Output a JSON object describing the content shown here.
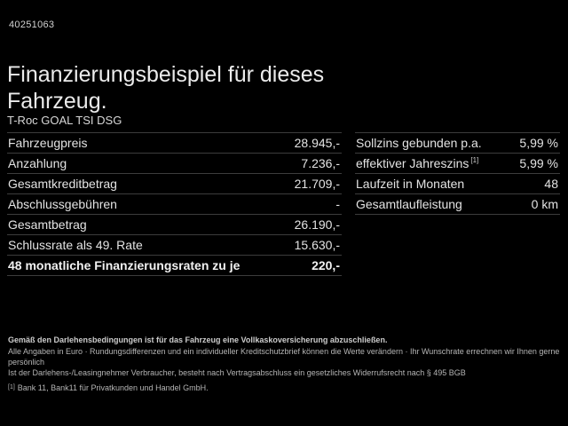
{
  "meta": {
    "vehicle_id": "40251063"
  },
  "header": {
    "title": "Finanzierungsbeispiel für dieses Fahrzeug.",
    "subtitle": "T-Roc GOAL TSI DSG"
  },
  "tables": {
    "left": {
      "rows": [
        {
          "label": "Fahrzeugpreis",
          "value": "28.945,-"
        },
        {
          "label": "Anzahlung",
          "value": "7.236,-"
        },
        {
          "label": "Gesamtkreditbetrag",
          "value": "21.709,-"
        },
        {
          "label": "Abschlussgebühren",
          "value": "-"
        },
        {
          "label": "Gesamtbetrag",
          "value": "26.190,-"
        },
        {
          "label": "Schlussrate als 49. Rate",
          "value": "15.630,-"
        },
        {
          "label": "48 monatliche Finanzierungsraten zu je",
          "value": "220,-",
          "bold": true
        }
      ]
    },
    "right": {
      "rows": [
        {
          "label": "Sollzins gebunden p.a.",
          "value": "5,99 %"
        },
        {
          "label": "effektiver Jahreszins",
          "sup": "[1]",
          "value": "5,99 %"
        },
        {
          "label": "Laufzeit in Monaten",
          "value": "48"
        },
        {
          "label": "Gesamtlaufleistung",
          "value": "0 km"
        }
      ]
    }
  },
  "footer": {
    "line1": "Gemäß den Darlehensbedingungen ist für das Fahrzeug eine Vollkaskoversicherung abzuschließen.",
    "line2": "Alle Angaben in Euro · Rundungsdifferenzen und ein individueller Kreditschutzbrief können die Werte verändern · Ihr Wunschrate errechnen wir Ihnen gerne persönlich",
    "line3": "Ist der Darlehens-/Leasingnehmer Verbraucher, besteht nach Vertragsabschluss ein gesetzliches Widerrufsrecht nach § 495 BGB",
    "footnote_marker": "[1]",
    "footnote": "Bank 11, Bank11 für Privatkunden und Handel GmbH."
  },
  "colors": {
    "background": "#000000",
    "text_primary": "#e3e3e3",
    "text_secondary": "#b5b5b5",
    "divider": "#3c3c3c"
  }
}
